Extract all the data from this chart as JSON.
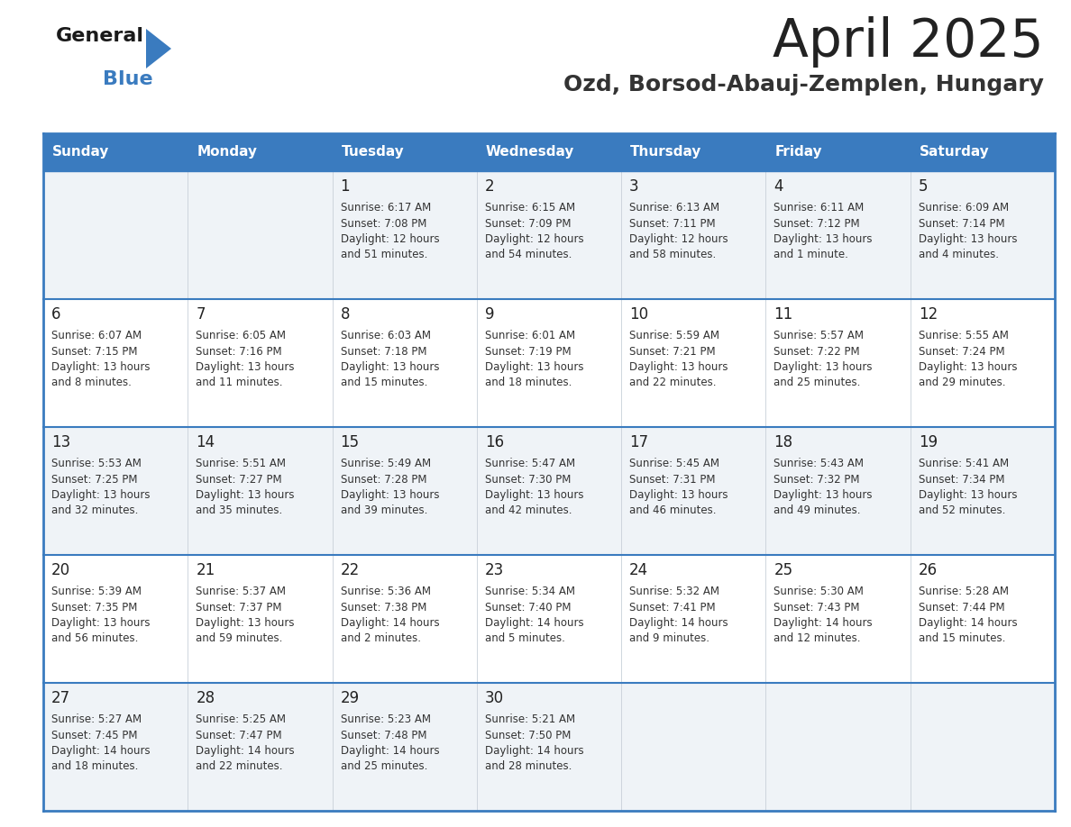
{
  "title": "April 2025",
  "subtitle": "Ozd, Borsod-Abauj-Zemplen, Hungary",
  "days_of_week": [
    "Sunday",
    "Monday",
    "Tuesday",
    "Wednesday",
    "Thursday",
    "Friday",
    "Saturday"
  ],
  "header_bg": "#3a7bbf",
  "header_text": "#ffffff",
  "cell_bg_odd": "#f0f4f8",
  "cell_bg_even": "#ffffff",
  "border_color": "#3a7bbf",
  "title_color": "#222222",
  "subtitle_color": "#333333",
  "text_color": "#333333",
  "day_num_color": "#222222",
  "calendar": [
    [
      {
        "day": "",
        "info": ""
      },
      {
        "day": "",
        "info": ""
      },
      {
        "day": "1",
        "info": "Sunrise: 6:17 AM\nSunset: 7:08 PM\nDaylight: 12 hours\nand 51 minutes."
      },
      {
        "day": "2",
        "info": "Sunrise: 6:15 AM\nSunset: 7:09 PM\nDaylight: 12 hours\nand 54 minutes."
      },
      {
        "day": "3",
        "info": "Sunrise: 6:13 AM\nSunset: 7:11 PM\nDaylight: 12 hours\nand 58 minutes."
      },
      {
        "day": "4",
        "info": "Sunrise: 6:11 AM\nSunset: 7:12 PM\nDaylight: 13 hours\nand 1 minute."
      },
      {
        "day": "5",
        "info": "Sunrise: 6:09 AM\nSunset: 7:14 PM\nDaylight: 13 hours\nand 4 minutes."
      }
    ],
    [
      {
        "day": "6",
        "info": "Sunrise: 6:07 AM\nSunset: 7:15 PM\nDaylight: 13 hours\nand 8 minutes."
      },
      {
        "day": "7",
        "info": "Sunrise: 6:05 AM\nSunset: 7:16 PM\nDaylight: 13 hours\nand 11 minutes."
      },
      {
        "day": "8",
        "info": "Sunrise: 6:03 AM\nSunset: 7:18 PM\nDaylight: 13 hours\nand 15 minutes."
      },
      {
        "day": "9",
        "info": "Sunrise: 6:01 AM\nSunset: 7:19 PM\nDaylight: 13 hours\nand 18 minutes."
      },
      {
        "day": "10",
        "info": "Sunrise: 5:59 AM\nSunset: 7:21 PM\nDaylight: 13 hours\nand 22 minutes."
      },
      {
        "day": "11",
        "info": "Sunrise: 5:57 AM\nSunset: 7:22 PM\nDaylight: 13 hours\nand 25 minutes."
      },
      {
        "day": "12",
        "info": "Sunrise: 5:55 AM\nSunset: 7:24 PM\nDaylight: 13 hours\nand 29 minutes."
      }
    ],
    [
      {
        "day": "13",
        "info": "Sunrise: 5:53 AM\nSunset: 7:25 PM\nDaylight: 13 hours\nand 32 minutes."
      },
      {
        "day": "14",
        "info": "Sunrise: 5:51 AM\nSunset: 7:27 PM\nDaylight: 13 hours\nand 35 minutes."
      },
      {
        "day": "15",
        "info": "Sunrise: 5:49 AM\nSunset: 7:28 PM\nDaylight: 13 hours\nand 39 minutes."
      },
      {
        "day": "16",
        "info": "Sunrise: 5:47 AM\nSunset: 7:30 PM\nDaylight: 13 hours\nand 42 minutes."
      },
      {
        "day": "17",
        "info": "Sunrise: 5:45 AM\nSunset: 7:31 PM\nDaylight: 13 hours\nand 46 minutes."
      },
      {
        "day": "18",
        "info": "Sunrise: 5:43 AM\nSunset: 7:32 PM\nDaylight: 13 hours\nand 49 minutes."
      },
      {
        "day": "19",
        "info": "Sunrise: 5:41 AM\nSunset: 7:34 PM\nDaylight: 13 hours\nand 52 minutes."
      }
    ],
    [
      {
        "day": "20",
        "info": "Sunrise: 5:39 AM\nSunset: 7:35 PM\nDaylight: 13 hours\nand 56 minutes."
      },
      {
        "day": "21",
        "info": "Sunrise: 5:37 AM\nSunset: 7:37 PM\nDaylight: 13 hours\nand 59 minutes."
      },
      {
        "day": "22",
        "info": "Sunrise: 5:36 AM\nSunset: 7:38 PM\nDaylight: 14 hours\nand 2 minutes."
      },
      {
        "day": "23",
        "info": "Sunrise: 5:34 AM\nSunset: 7:40 PM\nDaylight: 14 hours\nand 5 minutes."
      },
      {
        "day": "24",
        "info": "Sunrise: 5:32 AM\nSunset: 7:41 PM\nDaylight: 14 hours\nand 9 minutes."
      },
      {
        "day": "25",
        "info": "Sunrise: 5:30 AM\nSunset: 7:43 PM\nDaylight: 14 hours\nand 12 minutes."
      },
      {
        "day": "26",
        "info": "Sunrise: 5:28 AM\nSunset: 7:44 PM\nDaylight: 14 hours\nand 15 minutes."
      }
    ],
    [
      {
        "day": "27",
        "info": "Sunrise: 5:27 AM\nSunset: 7:45 PM\nDaylight: 14 hours\nand 18 minutes."
      },
      {
        "day": "28",
        "info": "Sunrise: 5:25 AM\nSunset: 7:47 PM\nDaylight: 14 hours\nand 22 minutes."
      },
      {
        "day": "29",
        "info": "Sunrise: 5:23 AM\nSunset: 7:48 PM\nDaylight: 14 hours\nand 25 minutes."
      },
      {
        "day": "30",
        "info": "Sunrise: 5:21 AM\nSunset: 7:50 PM\nDaylight: 14 hours\nand 28 minutes."
      },
      {
        "day": "",
        "info": ""
      },
      {
        "day": "",
        "info": ""
      },
      {
        "day": "",
        "info": ""
      }
    ]
  ]
}
